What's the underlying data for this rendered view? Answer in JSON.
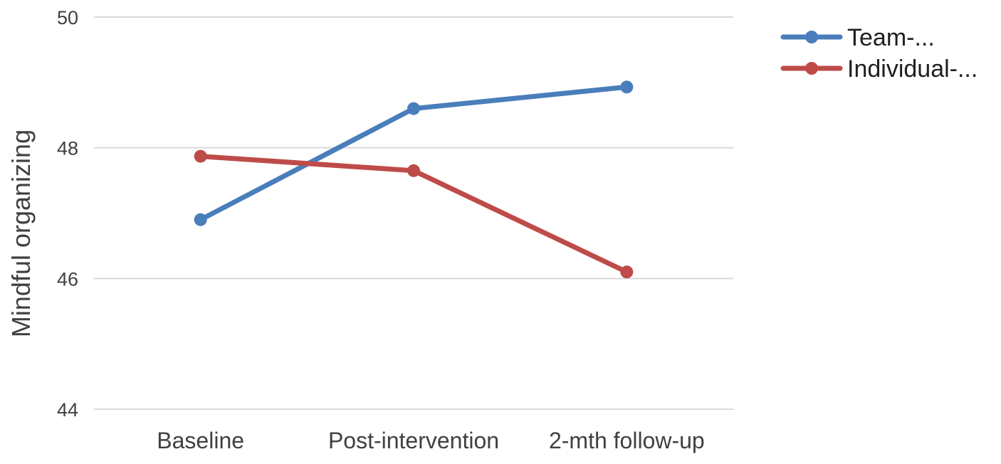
{
  "chart_data": {
    "type": "line",
    "title": "",
    "xlabel": "",
    "ylabel": "Mindful organizing",
    "categories": [
      "Baseline",
      "Post-intervention",
      "2-mth follow-up"
    ],
    "ylim": [
      44,
      50
    ],
    "yticks": [
      44,
      46,
      48,
      50
    ],
    "grid": true,
    "legend_position": "top-right",
    "series": [
      {
        "name": "Team-...",
        "color": "#4a7ebb",
        "values": [
          46.9,
          48.6,
          48.93
        ]
      },
      {
        "name": "Individual-...",
        "color": "#be4b48",
        "values": [
          47.87,
          47.65,
          46.1
        ]
      }
    ]
  }
}
